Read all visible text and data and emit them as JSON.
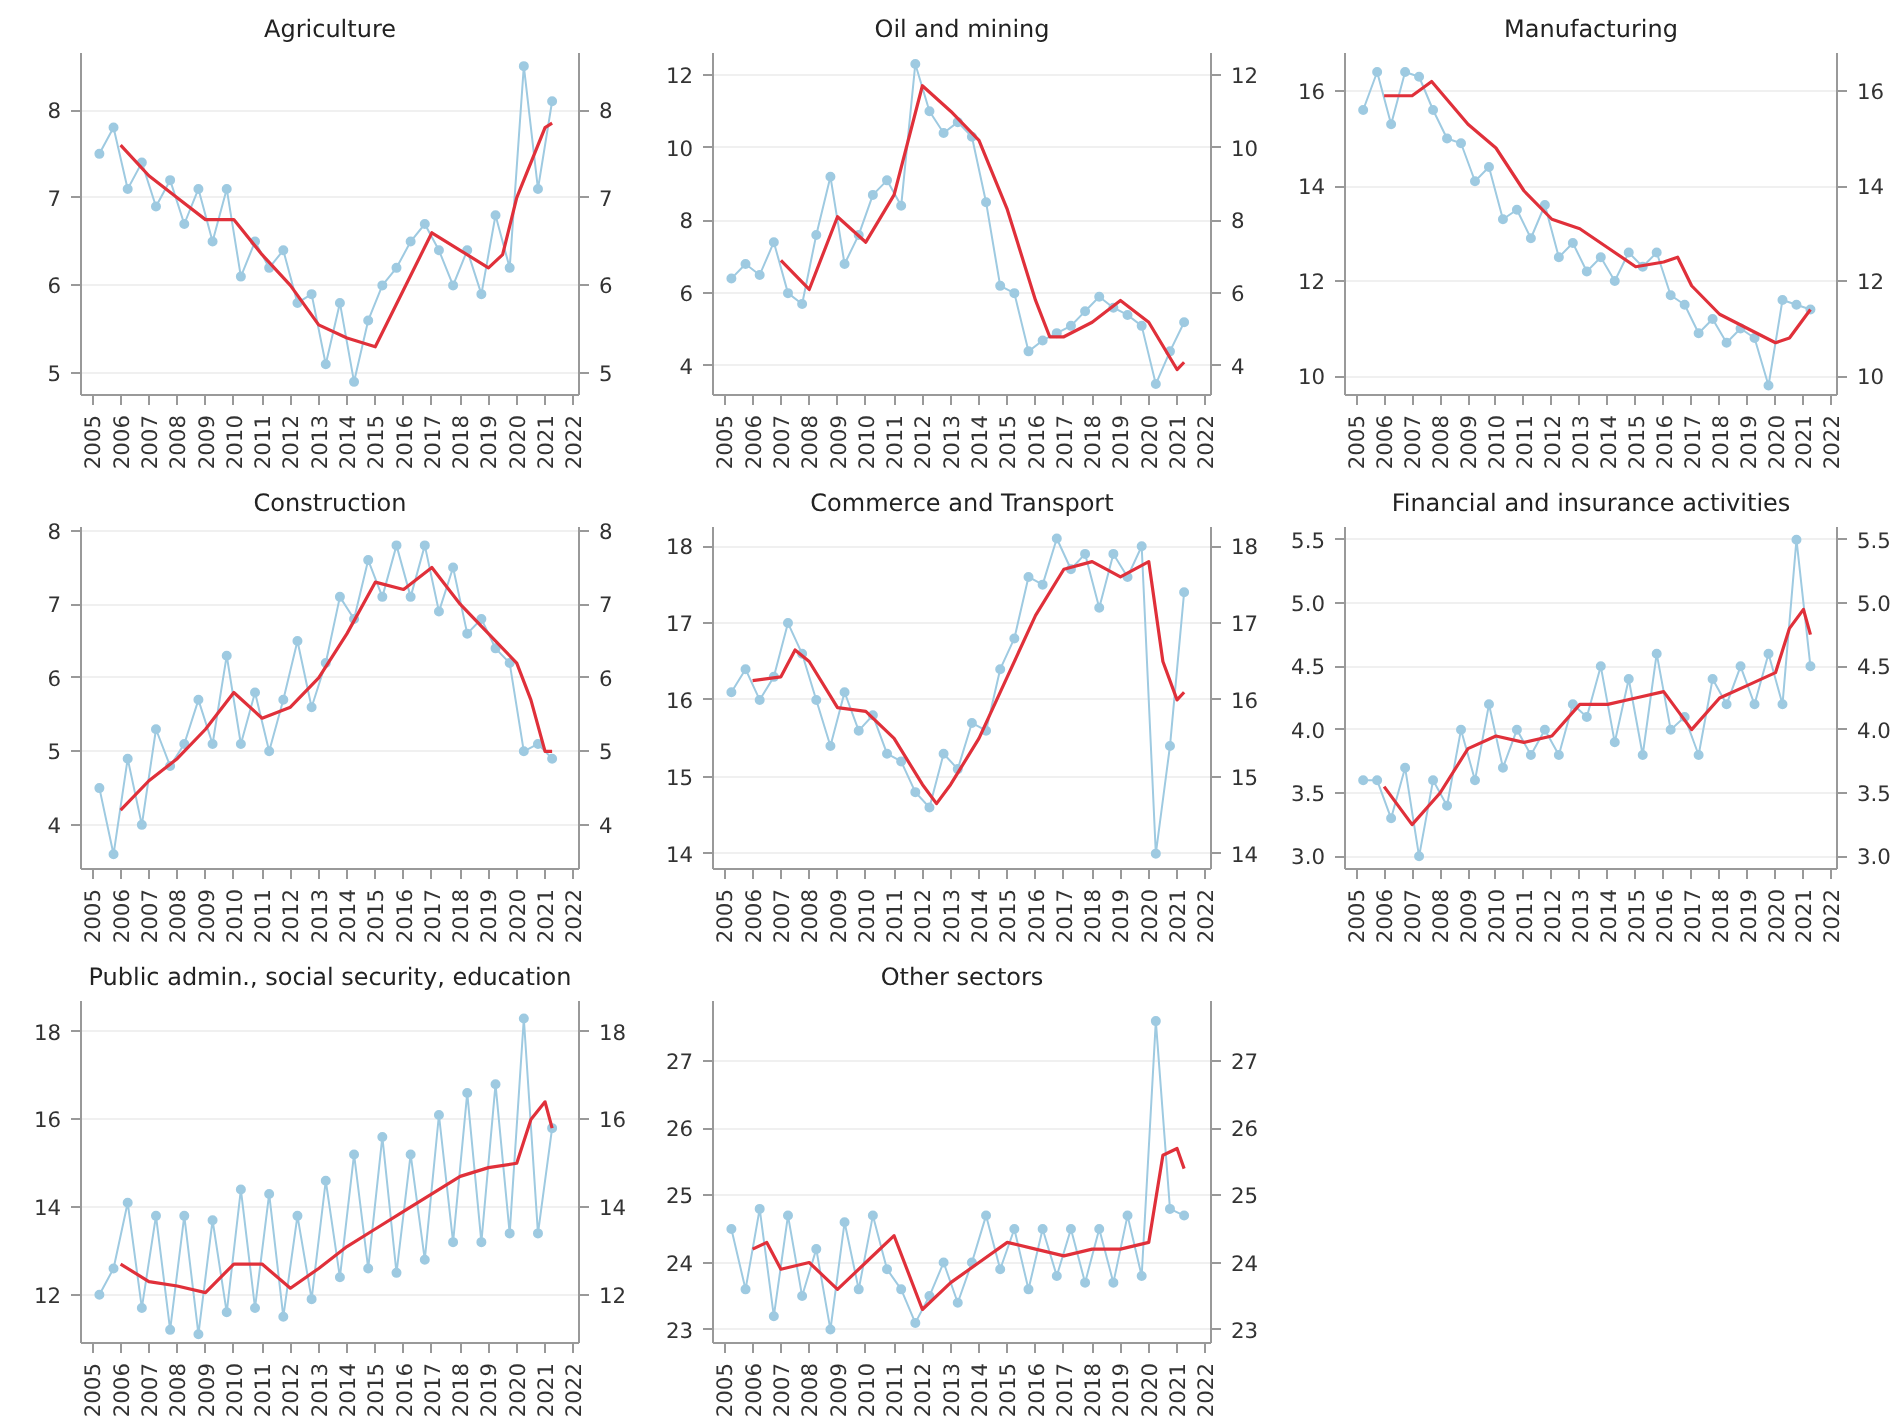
{
  "chart_data": [
    {
      "type": "line",
      "title": "Agriculture",
      "xlim": [
        2004.6,
        2022.2
      ],
      "xticks": [
        2005,
        2006,
        2007,
        2008,
        2009,
        2010,
        2011,
        2012,
        2013,
        2014,
        2015,
        2016,
        2017,
        2018,
        2019,
        2020,
        2021,
        2022
      ],
      "ylim": [
        4.75,
        8.65
      ],
      "yticks": [
        5,
        6,
        7,
        8
      ],
      "y2lim": [
        4.75,
        8.65
      ],
      "y2ticks": [
        5,
        6,
        7,
        8
      ],
      "grid": "y",
      "series": [
        {
          "color": "#9ecae1",
          "marker": "circle",
          "x": [
            2005.25,
            2005.75,
            2006.25,
            2006.75,
            2007.25,
            2007.75,
            2008.25,
            2008.75,
            2009.25,
            2009.75,
            2010.25,
            2010.75,
            2011.25,
            2011.75,
            2012.25,
            2012.75,
            2013.25,
            2013.75,
            2014.25,
            2014.75,
            2015.25,
            2015.75,
            2016.25,
            2016.75,
            2017.25,
            2017.75,
            2018.25,
            2018.75,
            2019.25,
            2019.75,
            2020.25,
            2020.75,
            2021.25
          ],
          "values": [
            7.5,
            7.8,
            7.1,
            7.4,
            6.9,
            7.2,
            6.7,
            7.1,
            6.5,
            7.1,
            6.1,
            6.5,
            6.2,
            6.4,
            5.8,
            5.9,
            5.1,
            5.8,
            4.9,
            5.6,
            6.0,
            6.2,
            6.5,
            6.7,
            6.4,
            6.0,
            6.4,
            5.9,
            6.8,
            6.2,
            8.5,
            7.1,
            8.1
          ]
        },
        {
          "color": "#e0303a",
          "marker": "none",
          "x": [
            2006,
            2007,
            2008,
            2009,
            2010,
            2011,
            2012,
            2013,
            2014,
            2015,
            2016,
            2017,
            2018,
            2019,
            2019.5,
            2020,
            2021,
            2021.25
          ],
          "values": [
            7.6,
            7.25,
            7.0,
            6.75,
            6.75,
            6.35,
            6.0,
            5.55,
            5.4,
            5.3,
            5.95,
            6.6,
            6.4,
            6.2,
            6.35,
            7.0,
            7.8,
            7.85
          ]
        }
      ]
    },
    {
      "type": "line",
      "title": "Oil and mining",
      "xlim": [
        2004.6,
        2022.2
      ],
      "xticks": [
        2005,
        2006,
        2007,
        2008,
        2009,
        2010,
        2011,
        2012,
        2013,
        2014,
        2015,
        2016,
        2017,
        2018,
        2019,
        2020,
        2021,
        2022
      ],
      "ylim": [
        3.2,
        12.6
      ],
      "yticks": [
        4,
        6,
        8,
        10,
        12
      ],
      "y2lim": [
        3.2,
        12.6
      ],
      "y2ticks": [
        4,
        6,
        8,
        10,
        12
      ],
      "grid": "y",
      "series": [
        {
          "color": "#9ecae1",
          "marker": "circle",
          "x": [
            2005.25,
            2005.75,
            2006.25,
            2006.75,
            2007.25,
            2007.75,
            2008.25,
            2008.75,
            2009.25,
            2009.75,
            2010.25,
            2010.75,
            2011.25,
            2011.75,
            2012.25,
            2012.75,
            2013.25,
            2013.75,
            2014.25,
            2014.75,
            2015.25,
            2015.75,
            2016.25,
            2016.75,
            2017.25,
            2017.75,
            2018.25,
            2018.75,
            2019.25,
            2019.75,
            2020.25,
            2020.75,
            2021.25
          ],
          "values": [
            6.4,
            6.8,
            6.5,
            7.4,
            6.0,
            5.7,
            7.6,
            9.2,
            6.8,
            7.6,
            8.7,
            9.1,
            8.4,
            12.3,
            11.0,
            10.4,
            10.7,
            10.3,
            8.5,
            6.2,
            6.0,
            4.4,
            4.7,
            4.9,
            5.1,
            5.5,
            5.9,
            5.6,
            5.4,
            5.1,
            3.5,
            4.4,
            5.2
          ]
        },
        {
          "color": "#e0303a",
          "marker": "none",
          "x": [
            2007,
            2008,
            2009,
            2010,
            2011,
            2012,
            2013,
            2014,
            2015,
            2016,
            2016.5,
            2017,
            2018,
            2019,
            2020,
            2021,
            2021.25
          ],
          "values": [
            6.9,
            6.1,
            8.1,
            7.4,
            8.7,
            11.7,
            11.0,
            10.2,
            8.3,
            5.8,
            4.8,
            4.8,
            5.2,
            5.8,
            5.2,
            3.9,
            4.1
          ]
        }
      ]
    },
    {
      "type": "line",
      "title": "Manufacturing",
      "xlim": [
        2004.6,
        2022.2
      ],
      "xticks": [
        2005,
        2006,
        2007,
        2008,
        2009,
        2010,
        2011,
        2012,
        2013,
        2014,
        2015,
        2016,
        2017,
        2018,
        2019,
        2020,
        2021,
        2022
      ],
      "ylim": [
        9.6,
        16.8
      ],
      "yticks": [
        10,
        12,
        14,
        16
      ],
      "y2lim": [
        9.6,
        16.8
      ],
      "y2ticks": [
        10,
        12,
        14,
        16
      ],
      "grid": "y",
      "series": [
        {
          "color": "#9ecae1",
          "marker": "circle",
          "x": [
            2005.25,
            2005.75,
            2006.25,
            2006.75,
            2007.25,
            2007.75,
            2008.25,
            2008.75,
            2009.25,
            2009.75,
            2010.25,
            2010.75,
            2011.25,
            2011.75,
            2012.25,
            2012.75,
            2013.25,
            2013.75,
            2014.25,
            2014.75,
            2015.25,
            2015.75,
            2016.25,
            2016.75,
            2017.25,
            2017.75,
            2018.25,
            2018.75,
            2019.25,
            2019.75,
            2020.25,
            2020.75,
            2021.25
          ],
          "values": [
            15.6,
            16.4,
            15.3,
            16.4,
            16.3,
            15.6,
            15.0,
            14.9,
            14.1,
            14.4,
            13.3,
            13.5,
            12.9,
            13.6,
            12.5,
            12.8,
            12.2,
            12.5,
            12.0,
            12.6,
            12.3,
            12.6,
            11.7,
            11.5,
            10.9,
            11.2,
            10.7,
            11.0,
            10.8,
            9.8,
            11.6,
            11.5,
            11.4
          ]
        },
        {
          "color": "#e0303a",
          "marker": "none",
          "x": [
            2006,
            2007,
            2007.7,
            2009,
            2010,
            2011,
            2012,
            2013,
            2014,
            2015,
            2016,
            2016.5,
            2017,
            2018,
            2019,
            2020,
            2020.5,
            2021.25
          ],
          "values": [
            15.9,
            15.9,
            16.2,
            15.3,
            14.8,
            13.9,
            13.3,
            13.1,
            12.7,
            12.3,
            12.4,
            12.5,
            11.9,
            11.3,
            11.0,
            10.7,
            10.8,
            11.4
          ]
        }
      ]
    },
    {
      "type": "line",
      "title": "Construction",
      "xlim": [
        2004.6,
        2022.2
      ],
      "xticks": [
        2005,
        2006,
        2007,
        2008,
        2009,
        2010,
        2011,
        2012,
        2013,
        2014,
        2015,
        2016,
        2017,
        2018,
        2019,
        2020,
        2021,
        2022
      ],
      "ylim": [
        3.4,
        8.05
      ],
      "yticks": [
        4,
        5,
        6,
        7,
        8
      ],
      "y2lim": [
        3.4,
        8.05
      ],
      "y2ticks": [
        4,
        5,
        6,
        7,
        8
      ],
      "grid": "y",
      "series": [
        {
          "color": "#9ecae1",
          "marker": "circle",
          "x": [
            2005.25,
            2005.75,
            2006.25,
            2006.75,
            2007.25,
            2007.75,
            2008.25,
            2008.75,
            2009.25,
            2009.75,
            2010.25,
            2010.75,
            2011.25,
            2011.75,
            2012.25,
            2012.75,
            2013.25,
            2013.75,
            2014.25,
            2014.75,
            2015.25,
            2015.75,
            2016.25,
            2016.75,
            2017.25,
            2017.75,
            2018.25,
            2018.75,
            2019.25,
            2019.75,
            2020.25,
            2020.75,
            2021.25
          ],
          "values": [
            4.5,
            3.6,
            4.9,
            4.0,
            5.3,
            4.8,
            5.1,
            5.7,
            5.1,
            6.3,
            5.1,
            5.8,
            5.0,
            5.7,
            6.5,
            5.6,
            6.2,
            7.1,
            6.8,
            7.6,
            7.1,
            7.8,
            7.1,
            7.8,
            6.9,
            7.5,
            6.6,
            6.8,
            6.4,
            6.2,
            5.0,
            5.1,
            4.9
          ]
        },
        {
          "color": "#e0303a",
          "marker": "none",
          "x": [
            2006,
            2007,
            2008,
            2009,
            2010,
            2011,
            2012,
            2013,
            2014,
            2015,
            2016,
            2017,
            2018,
            2019,
            2020,
            2020.5,
            2021,
            2021.25
          ],
          "values": [
            4.2,
            4.6,
            4.9,
            5.3,
            5.8,
            5.45,
            5.6,
            6.0,
            6.6,
            7.3,
            7.2,
            7.5,
            7.0,
            6.6,
            6.2,
            5.7,
            5.0,
            5.0
          ]
        }
      ]
    },
    {
      "type": "line",
      "title": "Commerce and Transport",
      "xlim": [
        2004.6,
        2022.2
      ],
      "xticks": [
        2005,
        2006,
        2007,
        2008,
        2009,
        2010,
        2011,
        2012,
        2013,
        2014,
        2015,
        2016,
        2017,
        2018,
        2019,
        2020,
        2021,
        2022
      ],
      "ylim": [
        13.8,
        18.25
      ],
      "yticks": [
        14,
        15,
        16,
        17,
        18
      ],
      "y2lim": [
        13.8,
        18.25
      ],
      "y2ticks": [
        14,
        15,
        16,
        17,
        18
      ],
      "grid": "y",
      "series": [
        {
          "color": "#9ecae1",
          "marker": "circle",
          "x": [
            2005.25,
            2005.75,
            2006.25,
            2006.75,
            2007.25,
            2007.75,
            2008.25,
            2008.75,
            2009.25,
            2009.75,
            2010.25,
            2010.75,
            2011.25,
            2011.75,
            2012.25,
            2012.75,
            2013.25,
            2013.75,
            2014.25,
            2014.75,
            2015.25,
            2015.75,
            2016.25,
            2016.75,
            2017.25,
            2017.75,
            2018.25,
            2018.75,
            2019.25,
            2019.75,
            2020.25,
            2020.75,
            2021.25
          ],
          "values": [
            16.1,
            16.4,
            16.0,
            16.3,
            17.0,
            16.6,
            16.0,
            15.4,
            16.1,
            15.6,
            15.8,
            15.3,
            15.2,
            14.8,
            14.6,
            15.3,
            15.1,
            15.7,
            15.6,
            16.4,
            16.8,
            17.6,
            17.5,
            18.1,
            17.7,
            17.9,
            17.2,
            17.9,
            17.6,
            18.0,
            14.0,
            15.4,
            17.4
          ]
        },
        {
          "color": "#e0303a",
          "marker": "none",
          "x": [
            2006,
            2007,
            2007.5,
            2008,
            2009,
            2010,
            2011,
            2012,
            2012.5,
            2013,
            2014,
            2015,
            2016,
            2017,
            2018,
            2019,
            2020,
            2020.5,
            2021,
            2021.25
          ],
          "values": [
            16.25,
            16.3,
            16.65,
            16.5,
            15.9,
            15.85,
            15.5,
            14.9,
            14.65,
            14.9,
            15.5,
            16.3,
            17.1,
            17.7,
            17.8,
            17.6,
            17.8,
            16.5,
            16.0,
            16.1
          ]
        }
      ]
    },
    {
      "type": "line",
      "title": "Financial and insurance activities",
      "xlim": [
        2004.6,
        2022.2
      ],
      "xticks": [
        2005,
        2006,
        2007,
        2008,
        2009,
        2010,
        2011,
        2012,
        2013,
        2014,
        2015,
        2016,
        2017,
        2018,
        2019,
        2020,
        2021,
        2022
      ],
      "ylim": [
        2.9,
        5.6
      ],
      "yticks": [
        {
          "value": 3,
          "label": "3.0"
        },
        3.5,
        {
          "value": 4,
          "label": "4.0"
        },
        4.5,
        {
          "value": 5,
          "label": "5.0"
        },
        5.5
      ],
      "y2lim": [
        2.9,
        5.6
      ],
      "y2ticks": [
        {
          "value": 3,
          "label": "3.0"
        },
        3.5,
        {
          "value": 4,
          "label": "4.0"
        },
        4.5,
        {
          "value": 5,
          "label": "5.0"
        },
        5.5
      ],
      "grid": "y",
      "series": [
        {
          "color": "#9ecae1",
          "marker": "circle",
          "x": [
            2005.25,
            2005.75,
            2006.25,
            2006.75,
            2007.25,
            2007.75,
            2008.25,
            2008.75,
            2009.25,
            2009.75,
            2010.25,
            2010.75,
            2011.25,
            2011.75,
            2012.25,
            2012.75,
            2013.25,
            2013.75,
            2014.25,
            2014.75,
            2015.25,
            2015.75,
            2016.25,
            2016.75,
            2017.25,
            2017.75,
            2018.25,
            2018.75,
            2019.25,
            2019.75,
            2020.25,
            2020.75,
            2021.25
          ],
          "values": [
            3.6,
            3.6,
            3.3,
            3.7,
            3.0,
            3.6,
            3.4,
            4.0,
            3.6,
            4.2,
            3.7,
            4.0,
            3.8,
            4.0,
            3.8,
            4.2,
            4.1,
            4.5,
            3.9,
            4.4,
            3.8,
            4.6,
            4.0,
            4.1,
            3.8,
            4.4,
            4.2,
            4.5,
            4.2,
            4.6,
            4.2,
            5.5,
            4.5
          ]
        },
        {
          "color": "#e0303a",
          "marker": "none",
          "x": [
            2006,
            2007,
            2008,
            2009,
            2010,
            2011,
            2012,
            2013,
            2014,
            2015,
            2016,
            2017,
            2018,
            2019,
            2020,
            2020.5,
            2021,
            2021.25
          ],
          "values": [
            3.55,
            3.25,
            3.5,
            3.85,
            3.95,
            3.9,
            3.95,
            4.2,
            4.2,
            4.25,
            4.3,
            4.0,
            4.25,
            4.35,
            4.45,
            4.8,
            4.95,
            4.75
          ]
        }
      ]
    },
    {
      "type": "line",
      "title": "Public admin., social security, education",
      "xlim": [
        2004.6,
        2022.2
      ],
      "xticks": [
        2005,
        2006,
        2007,
        2008,
        2009,
        2010,
        2011,
        2012,
        2013,
        2014,
        2015,
        2016,
        2017,
        2018,
        2019,
        2020,
        2021,
        2022
      ],
      "ylim": [
        10.9,
        18.7
      ],
      "yticks": [
        12,
        14,
        16,
        18
      ],
      "y2lim": [
        10.9,
        18.7
      ],
      "y2ticks": [
        12,
        14,
        16,
        18
      ],
      "grid": "y",
      "series": [
        {
          "color": "#9ecae1",
          "marker": "circle",
          "x": [
            2005.25,
            2005.75,
            2006.25,
            2006.75,
            2007.25,
            2007.75,
            2008.25,
            2008.75,
            2009.25,
            2009.75,
            2010.25,
            2010.75,
            2011.25,
            2011.75,
            2012.25,
            2012.75,
            2013.25,
            2013.75,
            2014.25,
            2014.75,
            2015.25,
            2015.75,
            2016.25,
            2016.75,
            2017.25,
            2017.75,
            2018.25,
            2018.75,
            2019.25,
            2019.75,
            2020.25,
            2020.75,
            2021.25
          ],
          "values": [
            12.0,
            12.6,
            14.1,
            11.7,
            13.8,
            11.2,
            13.8,
            11.1,
            13.7,
            11.6,
            14.4,
            11.7,
            14.3,
            11.5,
            13.8,
            11.9,
            14.6,
            12.4,
            15.2,
            12.6,
            15.6,
            12.5,
            15.2,
            12.8,
            16.1,
            13.2,
            16.6,
            13.2,
            16.8,
            13.4,
            18.3,
            13.4,
            15.8
          ]
        },
        {
          "color": "#e0303a",
          "marker": "none",
          "x": [
            2006,
            2007,
            2008,
            2009,
            2010,
            2011,
            2012,
            2013,
            2014,
            2015,
            2016,
            2017,
            2018,
            2019,
            2020,
            2020.5,
            2021,
            2021.25
          ],
          "values": [
            12.7,
            12.3,
            12.2,
            12.05,
            12.7,
            12.7,
            12.15,
            12.6,
            13.1,
            13.5,
            13.9,
            14.3,
            14.7,
            14.9,
            15.0,
            16.0,
            16.4,
            15.8
          ]
        }
      ]
    },
    {
      "type": "line",
      "title": "Other sectors",
      "xlim": [
        2004.6,
        2022.2
      ],
      "xticks": [
        2005,
        2006,
        2007,
        2008,
        2009,
        2010,
        2011,
        2012,
        2013,
        2014,
        2015,
        2016,
        2017,
        2018,
        2019,
        2020,
        2021,
        2022
      ],
      "ylim": [
        22.8,
        27.9
      ],
      "yticks": [
        23,
        24,
        25,
        26,
        27
      ],
      "y2lim": [
        22.8,
        27.9
      ],
      "y2ticks": [
        23,
        24,
        25,
        26,
        27
      ],
      "grid": "y",
      "series": [
        {
          "color": "#9ecae1",
          "marker": "circle",
          "x": [
            2005.25,
            2005.75,
            2006.25,
            2006.75,
            2007.25,
            2007.75,
            2008.25,
            2008.75,
            2009.25,
            2009.75,
            2010.25,
            2010.75,
            2011.25,
            2011.75,
            2012.25,
            2012.75,
            2013.25,
            2013.75,
            2014.25,
            2014.75,
            2015.25,
            2015.75,
            2016.25,
            2016.75,
            2017.25,
            2017.75,
            2018.25,
            2018.75,
            2019.25,
            2019.75,
            2020.25,
            2020.75,
            2021.25
          ],
          "values": [
            24.5,
            23.6,
            24.8,
            23.2,
            24.7,
            23.5,
            24.2,
            23.0,
            24.6,
            23.6,
            24.7,
            23.9,
            23.6,
            23.1,
            23.5,
            24.0,
            23.4,
            24.0,
            24.7,
            23.9,
            24.5,
            23.6,
            24.5,
            23.8,
            24.5,
            23.7,
            24.5,
            23.7,
            24.7,
            23.8,
            27.6,
            24.8,
            24.7
          ]
        },
        {
          "color": "#e0303a",
          "marker": "none",
          "x": [
            2006,
            2006.5,
            2007,
            2008,
            2009,
            2010,
            2011,
            2012,
            2013,
            2014,
            2015,
            2016,
            2017,
            2018,
            2019,
            2020,
            2020.5,
            2021,
            2021.25
          ],
          "values": [
            24.2,
            24.3,
            23.9,
            24.0,
            23.6,
            24.0,
            24.4,
            23.3,
            23.7,
            24.0,
            24.3,
            24.2,
            24.1,
            24.2,
            24.2,
            24.3,
            25.6,
            25.7,
            25.4
          ]
        }
      ]
    }
  ]
}
